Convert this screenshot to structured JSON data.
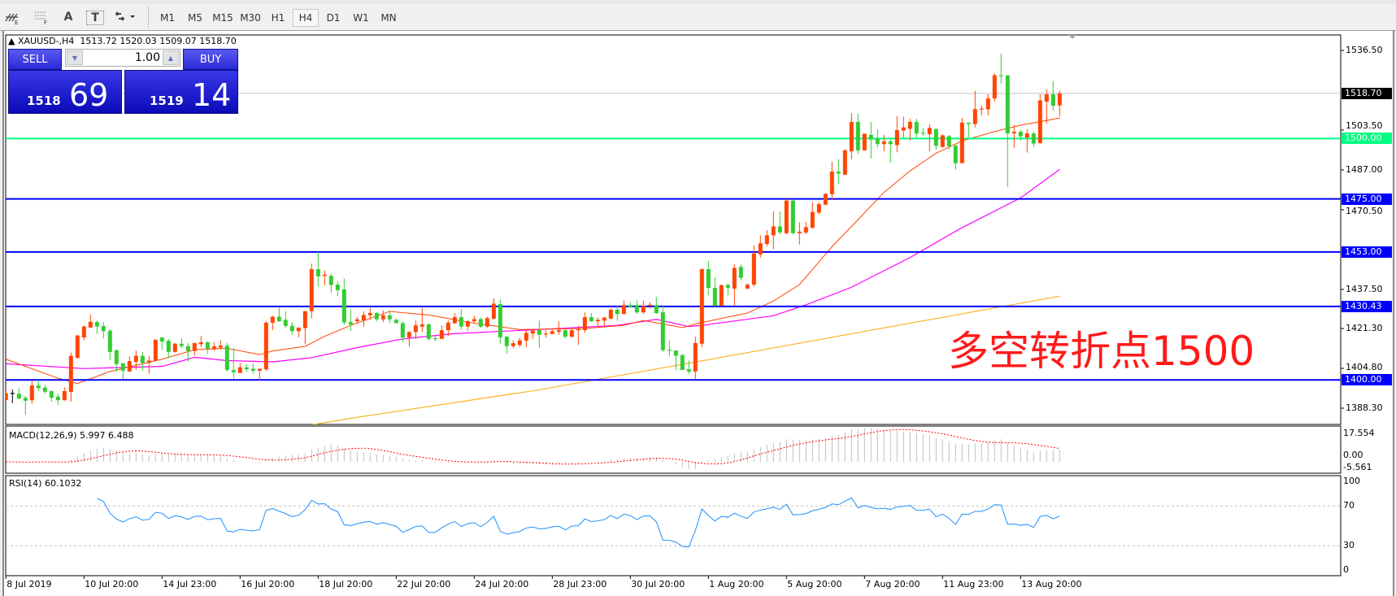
{
  "toolbar": {
    "icons": [
      "elliott-wave-icon",
      "fibonacci-icon",
      "text-label-icon",
      "text-box-icon",
      "arrows-dropdown-icon"
    ],
    "text_icon_glyph": "A",
    "textbox_icon_glyph": "T",
    "timeframes": [
      "M1",
      "M5",
      "M15",
      "M30",
      "H1",
      "H4",
      "D1",
      "W1",
      "MN"
    ],
    "active_timeframe": "H4"
  },
  "chart": {
    "symbol_header": "XAUUSD-,H4",
    "ohlc_header": "1513.72 1520.03 1509.07 1518.70",
    "annotation": "多空转折点1500",
    "annotation_color": "#ff1a1a"
  },
  "trade_panel": {
    "sell_label": "SELL",
    "buy_label": "BUY",
    "lot": "1.00",
    "sell_price_small": "1518",
    "sell_price_big": "69",
    "buy_price_small": "1519",
    "buy_price_big": "14"
  },
  "price_axis": {
    "labels": [
      "1536.50",
      "1503.50",
      "1487.00",
      "1470.50",
      "1437.50",
      "1421.30",
      "1404.80",
      "1388.30"
    ],
    "current_price": "1518.70",
    "current_price_color": "#000000"
  },
  "hlines": [
    {
      "price": 1500.0,
      "label": "1500.00",
      "color": "#00ff80"
    },
    {
      "price": 1475.0,
      "label": "1475.00",
      "color": "#0000ff"
    },
    {
      "price": 1453.0,
      "label": "1453.00",
      "color": "#0000ff"
    },
    {
      "price": 1430.43,
      "label": "1430.43",
      "color": "#0000ff"
    },
    {
      "price": 1400.0,
      "label": "1400.00",
      "color": "#0000ff"
    }
  ],
  "macd": {
    "label": "MACD(12,26,9) 5.997 6.488",
    "axis_labels": [
      "17.554",
      "0.00",
      "-5.561"
    ],
    "range": [
      -5.561,
      17.554
    ]
  },
  "rsi": {
    "label": "RSI(14) 60.1032",
    "axis_labels": [
      "100",
      "70",
      "30",
      "0"
    ],
    "levels": [
      70,
      30
    ]
  },
  "date_axis": [
    "8 Jul 2019",
    "10 Jul 20:00",
    "14 Jul 23:00",
    "16 Jul 20:00",
    "18 Jul 20:00",
    "22 Jul 20:00",
    "24 Jul 20:00",
    "28 Jul 23:00",
    "30 Jul 20:00",
    "1 Aug 20:00",
    "5 Aug 20:00",
    "7 Aug 20:00",
    "11 Aug 23:00",
    "13 Aug 20:00"
  ],
  "chart_data": {
    "type": "candlestick",
    "timeframe": "H4",
    "ylim": [
      1381.6,
      1543.5
    ],
    "colors": {
      "up": "#ff4500",
      "down": "#32cd32",
      "doji": "#000000",
      "ma_red": "#ff4500",
      "ma_magenta": "#ff00ff",
      "ma_orange": "#ffa500",
      "rsi": "#1e90ff",
      "macd_hist": "#c0c0c0",
      "macd_signal": "#ff0000"
    },
    "ohlc": [
      [
        1391.7,
        1396,
        1391,
        1394.5
      ],
      [
        1394.4,
        1396,
        1390.4,
        1394.4
      ],
      [
        1394.3,
        1396.5,
        1392,
        1392.3
      ],
      [
        1392.6,
        1393.4,
        1385.6,
        1391.4
      ],
      [
        1391.6,
        1399.9,
        1390.1,
        1397.7
      ],
      [
        1397.7,
        1400,
        1395.4,
        1396.6
      ],
      [
        1396.8,
        1397.9,
        1394.3,
        1395.1
      ],
      [
        1395.4,
        1395.4,
        1391,
        1392.6
      ],
      [
        1393.1,
        1394.3,
        1389.7,
        1391.6
      ],
      [
        1391.6,
        1397,
        1391.4,
        1395.4
      ],
      [
        1395,
        1411.4,
        1391,
        1410
      ],
      [
        1409.1,
        1418.7,
        1408.9,
        1418.4
      ],
      [
        1417.6,
        1422.6,
        1416.5,
        1422.1
      ],
      [
        1421.7,
        1427.1,
        1421.5,
        1424.1
      ],
      [
        1424,
        1424.6,
        1419,
        1422.1
      ],
      [
        1422.3,
        1424,
        1417.2,
        1420.2
      ],
      [
        1420.4,
        1421,
        1408.2,
        1411.6
      ],
      [
        1412.3,
        1412.7,
        1403.3,
        1406.6
      ],
      [
        1406.9,
        1407.1,
        1400.4,
        1403.8
      ],
      [
        1403.5,
        1409.7,
        1403.3,
        1407.8
      ],
      [
        1407.5,
        1412.2,
        1404.1,
        1410
      ],
      [
        1410,
        1411.6,
        1403.8,
        1407.1
      ],
      [
        1407.1,
        1410,
        1402.6,
        1408
      ],
      [
        1408,
        1417,
        1407.8,
        1416.6
      ],
      [
        1417.6,
        1417.6,
        1412.5,
        1415.9
      ],
      [
        1416.2,
        1417,
        1409.1,
        1411.6
      ],
      [
        1411.6,
        1415.3,
        1411.4,
        1415
      ],
      [
        1415,
        1417.2,
        1413.1,
        1414
      ],
      [
        1414,
        1415.3,
        1407.5,
        1412
      ],
      [
        1412,
        1415.3,
        1410,
        1415.3
      ],
      [
        1414.8,
        1418.3,
        1413.6,
        1415.6
      ],
      [
        1415.6,
        1416.1,
        1410.8,
        1412.9
      ],
      [
        1413,
        1415.6,
        1412,
        1413.9
      ],
      [
        1413.4,
        1416.5,
        1412.5,
        1414.2
      ],
      [
        1414.2,
        1415.3,
        1403.5,
        1404.1
      ],
      [
        1404.1,
        1413.1,
        1400.7,
        1403.2
      ],
      [
        1402.9,
        1407.1,
        1402.9,
        1405.2
      ],
      [
        1405.2,
        1406.7,
        1403.3,
        1404.4
      ],
      [
        1404.6,
        1406.7,
        1402.6,
        1403.8
      ],
      [
        1403.8,
        1404.6,
        1399.6,
        1404.6
      ],
      [
        1404.4,
        1424.3,
        1403.8,
        1423.7
      ],
      [
        1423.7,
        1426.6,
        1420.6,
        1426.2
      ],
      [
        1426.2,
        1429.9,
        1424,
        1424.3
      ],
      [
        1424.9,
        1428.5,
        1421.5,
        1422.4
      ],
      [
        1422.4,
        1424,
        1418.7,
        1420.2
      ],
      [
        1420.2,
        1421.7,
        1417.6,
        1421.7
      ],
      [
        1421.5,
        1428.5,
        1414.8,
        1428.5
      ],
      [
        1428.5,
        1448.2,
        1425.5,
        1445.9
      ],
      [
        1445.9,
        1453,
        1438.6,
        1442.9
      ],
      [
        1443.1,
        1445.3,
        1439.1,
        1443.6
      ],
      [
        1443.1,
        1444,
        1436.1,
        1439.3
      ],
      [
        1439.5,
        1440.8,
        1434.8,
        1437.2
      ],
      [
        1437.5,
        1442,
        1422.9,
        1423.8
      ],
      [
        1424,
        1429.2,
        1420.2,
        1423
      ],
      [
        1424.3,
        1426.2,
        1423.2,
        1425.1
      ],
      [
        1424.7,
        1428.5,
        1422.1,
        1426.9
      ],
      [
        1426.8,
        1429.9,
        1424.9,
        1427.7
      ],
      [
        1427.7,
        1428,
        1424.3,
        1425.1
      ],
      [
        1425.1,
        1428.8,
        1424,
        1426.8
      ],
      [
        1426.8,
        1428.8,
        1423.5,
        1425.1
      ],
      [
        1424.9,
        1425.4,
        1423.5,
        1423.5
      ],
      [
        1423.5,
        1424.3,
        1415.6,
        1417.6
      ],
      [
        1417.6,
        1420.4,
        1413.8,
        1419.8
      ],
      [
        1419.8,
        1424.6,
        1417,
        1422.6
      ],
      [
        1422.1,
        1429.9,
        1419.8,
        1423
      ],
      [
        1423,
        1423.5,
        1416.1,
        1417
      ],
      [
        1417.1,
        1418.7,
        1416.1,
        1417
      ],
      [
        1417,
        1422.6,
        1417,
        1420.6
      ],
      [
        1420.6,
        1424.6,
        1418.1,
        1423.7
      ],
      [
        1423.5,
        1427.7,
        1423.2,
        1426
      ],
      [
        1426,
        1429.4,
        1420.9,
        1422.1
      ],
      [
        1422.1,
        1424.9,
        1420.4,
        1424.3
      ],
      [
        1424.3,
        1426.6,
        1423.7,
        1425.2
      ],
      [
        1425.2,
        1425.8,
        1421.5,
        1422.1
      ],
      [
        1422.1,
        1426.2,
        1421.5,
        1425.6
      ],
      [
        1425.4,
        1433.8,
        1424.9,
        1431.6
      ],
      [
        1431.4,
        1433.3,
        1415,
        1417.6
      ],
      [
        1417.9,
        1418.3,
        1410.8,
        1414
      ],
      [
        1414,
        1416.4,
        1413.1,
        1415.2
      ],
      [
        1414.5,
        1417.5,
        1413.6,
        1416.4
      ],
      [
        1416.3,
        1420.4,
        1413.6,
        1419.5
      ],
      [
        1419.2,
        1420.6,
        1417,
        1420.4
      ],
      [
        1420.6,
        1424.6,
        1413.3,
        1418.7
      ],
      [
        1418.7,
        1420.6,
        1417.6,
        1419
      ],
      [
        1419,
        1420.9,
        1419,
        1420.2
      ],
      [
        1420,
        1424.3,
        1418.7,
        1420.7
      ],
      [
        1420.6,
        1420.9,
        1417.2,
        1417.9
      ],
      [
        1417.9,
        1420.9,
        1417.6,
        1420.6
      ],
      [
        1420.4,
        1422.4,
        1414.5,
        1420.8
      ],
      [
        1420.6,
        1428,
        1419.5,
        1426
      ],
      [
        1426,
        1427.7,
        1424,
        1424.3
      ],
      [
        1424.3,
        1426,
        1422.1,
        1424.9
      ],
      [
        1424.6,
        1426.2,
        1422.4,
        1425.8
      ],
      [
        1425.4,
        1429.6,
        1425.1,
        1429.1
      ],
      [
        1429.1,
        1430.7,
        1424.5,
        1427.3
      ],
      [
        1427.3,
        1432.9,
        1427.3,
        1431
      ],
      [
        1431,
        1432.1,
        1429.9,
        1430.2
      ],
      [
        1431,
        1432.9,
        1427.3,
        1428
      ],
      [
        1428,
        1432.9,
        1427.3,
        1430.7
      ],
      [
        1430.5,
        1432.2,
        1429.6,
        1430.9
      ],
      [
        1431,
        1434.4,
        1427.3,
        1427.7
      ],
      [
        1428,
        1431,
        1411.6,
        1412.3
      ],
      [
        1412.3,
        1416.4,
        1409.7,
        1412.1
      ],
      [
        1412.2,
        1412.2,
        1404.1,
        1410
      ],
      [
        1410.3,
        1410.8,
        1404.1,
        1404.1
      ],
      [
        1404.4,
        1408,
        1402.4,
        1403.5
      ],
      [
        1403.5,
        1417.9,
        1400.2,
        1415.3
      ],
      [
        1415,
        1446.2,
        1413.6,
        1445.9
      ],
      [
        1445.9,
        1449.4,
        1435.2,
        1438.1
      ],
      [
        1438.1,
        1442.6,
        1430.3,
        1430.7
      ],
      [
        1430.7,
        1439.5,
        1430.5,
        1439.3
      ],
      [
        1439.3,
        1440,
        1435,
        1438.1
      ],
      [
        1437.8,
        1447.9,
        1430.7,
        1446.4
      ],
      [
        1446.8,
        1447.9,
        1441.2,
        1442.3
      ],
      [
        1437.8,
        1440,
        1437.8,
        1439.5
      ],
      [
        1439.5,
        1455.8,
        1438.6,
        1452.4
      ],
      [
        1452,
        1459.9,
        1450.7,
        1456.6
      ],
      [
        1456.3,
        1462,
        1455.4,
        1459.9
      ],
      [
        1459.9,
        1469.8,
        1454.1,
        1463.6
      ],
      [
        1463.6,
        1469.8,
        1460.3,
        1461.1
      ],
      [
        1460.8,
        1474.9,
        1460.3,
        1474.3
      ],
      [
        1474.3,
        1474.9,
        1460.3,
        1460.8
      ],
      [
        1460.8,
        1465.3,
        1456.1,
        1461.4
      ],
      [
        1461.1,
        1465.5,
        1460.3,
        1463.3
      ],
      [
        1463.1,
        1473.7,
        1462.5,
        1469.6
      ],
      [
        1469.3,
        1473.7,
        1468.5,
        1472.8
      ],
      [
        1472.6,
        1477.4,
        1472.3,
        1477.1
      ],
      [
        1476.9,
        1490.4,
        1474.6,
        1486.3
      ],
      [
        1486.3,
        1491.4,
        1481,
        1485.5
      ],
      [
        1485,
        1495.6,
        1485,
        1495.1
      ],
      [
        1494.7,
        1510.5,
        1491.4,
        1506.9
      ],
      [
        1506.9,
        1510.2,
        1493.6,
        1495.1
      ],
      [
        1495.1,
        1502,
        1495.1,
        1502
      ],
      [
        1501.5,
        1506.9,
        1491.7,
        1499.6
      ],
      [
        1499.9,
        1503.7,
        1496.2,
        1497.7
      ],
      [
        1497.7,
        1501.5,
        1494.7,
        1498.8
      ],
      [
        1498.8,
        1499.6,
        1490,
        1497.7
      ],
      [
        1497.3,
        1509.3,
        1494.3,
        1503.5
      ],
      [
        1503.3,
        1509.1,
        1500.4,
        1504.6
      ],
      [
        1504,
        1508.2,
        1499.2,
        1506.9
      ],
      [
        1506.9,
        1508.2,
        1500.4,
        1502.1
      ],
      [
        1502.2,
        1504.4,
        1501,
        1502.1
      ],
      [
        1501.8,
        1506,
        1494.7,
        1504.4
      ],
      [
        1504,
        1504,
        1495.4,
        1497
      ],
      [
        1496.5,
        1501.8,
        1496.2,
        1501.3
      ],
      [
        1501,
        1501.5,
        1495.4,
        1496.8
      ],
      [
        1497,
        1497.9,
        1487.2,
        1489.8
      ],
      [
        1489.8,
        1508.5,
        1489.8,
        1506.6
      ],
      [
        1506.6,
        1506.6,
        1500.4,
        1506
      ],
      [
        1506,
        1519.8,
        1504.6,
        1512.2
      ],
      [
        1512.1,
        1513.6,
        1509.6,
        1512.2
      ],
      [
        1512.1,
        1518.3,
        1509.6,
        1516.6
      ],
      [
        1516.6,
        1527.1,
        1515.3,
        1526.2
      ],
      [
        1526,
        1535.1,
        1522.8,
        1525.9
      ],
      [
        1526.2,
        1526.2,
        1479.9,
        1502.1
      ],
      [
        1502.1,
        1505.7,
        1496.2,
        1502.8
      ],
      [
        1502.8,
        1503.7,
        1499.2,
        1500.9
      ],
      [
        1500.4,
        1504,
        1494.2,
        1502.1
      ],
      [
        1502.1,
        1502.9,
        1496.5,
        1497.9
      ],
      [
        1498.1,
        1518.3,
        1497.9,
        1515.8
      ],
      [
        1515.3,
        1520.3,
        1506.3,
        1518.3
      ],
      [
        1518.3,
        1523.9,
        1511.6,
        1513.6
      ],
      [
        1513.72,
        1520.03,
        1509.07,
        1518.7
      ]
    ],
    "ma_red": [
      [
        1,
        1408.6
      ],
      [
        9,
        1400.7
      ],
      [
        12,
        1398.5
      ],
      [
        17,
        1403.5
      ],
      [
        25,
        1408.6
      ],
      [
        30,
        1412.5
      ],
      [
        35,
        1413.1
      ],
      [
        40,
        1410.5
      ],
      [
        42,
        1412
      ],
      [
        47,
        1413.9
      ],
      [
        50,
        1418.1
      ],
      [
        54,
        1422.6
      ],
      [
        60,
        1428.4
      ],
      [
        66,
        1426.9
      ],
      [
        73,
        1423.5
      ],
      [
        80,
        1420.9
      ],
      [
        90,
        1421.3
      ],
      [
        96,
        1422.6
      ],
      [
        99,
        1424.6
      ],
      [
        102,
        1423.2
      ],
      [
        105,
        1421.7
      ],
      [
        108,
        1423.8
      ],
      [
        115,
        1427.7
      ],
      [
        119,
        1432.7
      ],
      [
        123,
        1439.5
      ],
      [
        128,
        1455.2
      ],
      [
        132,
        1466.4
      ],
      [
        136,
        1477.7
      ],
      [
        140,
        1486.6
      ],
      [
        144,
        1493.9
      ],
      [
        148,
        1499
      ],
      [
        153,
        1502.9
      ],
      [
        157,
        1505.5
      ],
      [
        163,
        1508.5
      ]
    ],
    "ma_magenta": [
      [
        1,
        1406.7
      ],
      [
        13,
        1404.7
      ],
      [
        25,
        1405.6
      ],
      [
        29,
        1408.6
      ],
      [
        30,
        1409.4
      ],
      [
        35,
        1408
      ],
      [
        42,
        1407.5
      ],
      [
        48,
        1409.2
      ],
      [
        55,
        1413.4
      ],
      [
        62,
        1417
      ],
      [
        70,
        1419.2
      ],
      [
        83,
        1420.9
      ],
      [
        95,
        1422.6
      ],
      [
        101,
        1425.1
      ],
      [
        106,
        1422.1
      ],
      [
        108,
        1422.6
      ],
      [
        119,
        1426.6
      ],
      [
        124,
        1431.1
      ],
      [
        131,
        1438.4
      ],
      [
        140,
        1450.7
      ],
      [
        148,
        1463.1
      ],
      [
        157,
        1475.4
      ],
      [
        163,
        1487.2
      ]
    ],
    "ma_orange": [
      [
        48,
        1381.4
      ],
      [
        55,
        1384.5
      ],
      [
        83,
        1395.9
      ],
      [
        109,
        1408.4
      ],
      [
        163,
        1434.7
      ]
    ]
  }
}
